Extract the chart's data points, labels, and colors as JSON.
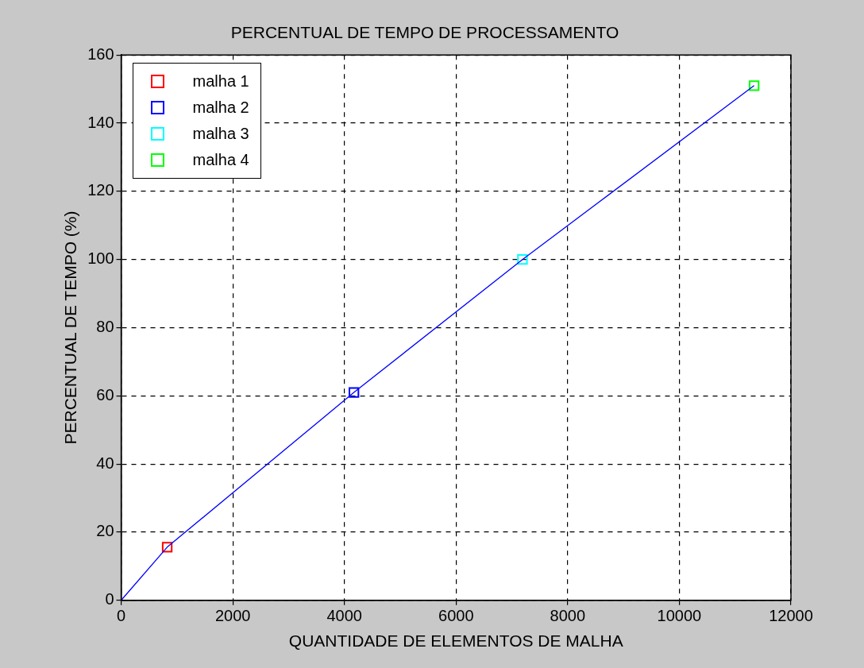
{
  "chart_data": {
    "type": "scatter",
    "title": "PERCENTUAL DE TEMPO DE PROCESSAMENTO",
    "xlabel": "QUANTIDADE DE ELEMENTOS DE MALHA",
    "ylabel": "PERCENTUAL DE TEMPO (%)",
    "xlim": [
      0,
      12000
    ],
    "xticks": [
      0,
      2000,
      4000,
      6000,
      8000,
      10000,
      12000
    ],
    "ylim": [
      0,
      160
    ],
    "yticks": [
      0,
      20,
      40,
      60,
      80,
      100,
      120,
      140,
      160
    ],
    "grid": true,
    "legend": "top left",
    "marker": "square",
    "series": [
      {
        "type": "line",
        "marker": "none",
        "line_style": "solid",
        "color": "#0000ff",
        "x": [
          0,
          825,
          4170,
          7190,
          11340
        ],
        "values": [
          0,
          15.6,
          61,
          100,
          151
        ]
      },
      {
        "name": "malha 1",
        "color": "#ff0000",
        "x": [
          825
        ],
        "values": [
          15.6
        ]
      },
      {
        "name": "malha 2",
        "color": "#0000ff",
        "x": [
          4170
        ],
        "values": [
          61
        ]
      },
      {
        "name": "malha 3",
        "color": "#00ffff",
        "x": [
          7190
        ],
        "values": [
          100
        ]
      },
      {
        "name": "malha 4",
        "color": "#00ff00",
        "x": [
          11340
        ],
        "values": [
          151
        ]
      }
    ]
  }
}
